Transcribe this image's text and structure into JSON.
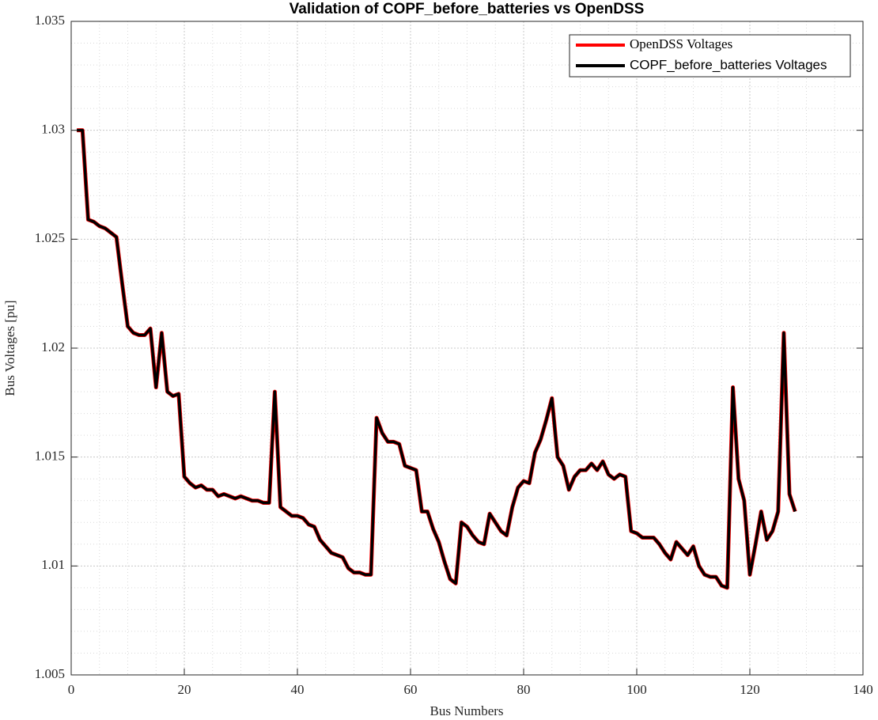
{
  "chart_data": {
    "type": "line",
    "title": "Validation of COPF_before_batteries vs OpenDSS",
    "x_label": "Bus Numbers",
    "y_label": "Bus Voltages [pu]",
    "x": [
      1,
      2,
      3,
      4,
      5,
      6,
      7,
      8,
      9,
      10,
      11,
      12,
      13,
      14,
      15,
      16,
      17,
      18,
      19,
      20,
      21,
      22,
      23,
      24,
      25,
      26,
      27,
      28,
      29,
      30,
      31,
      32,
      33,
      34,
      35,
      36,
      37,
      38,
      39,
      40,
      41,
      42,
      43,
      44,
      45,
      46,
      47,
      48,
      49,
      50,
      51,
      52,
      53,
      54,
      55,
      56,
      57,
      58,
      59,
      60,
      61,
      62,
      63,
      64,
      65,
      66,
      67,
      68,
      69,
      70,
      71,
      72,
      73,
      74,
      75,
      76,
      77,
      78,
      79,
      80,
      81,
      82,
      83,
      84,
      85,
      86,
      87,
      88,
      89,
      90,
      91,
      92,
      93,
      94,
      95,
      96,
      97,
      98,
      99,
      100,
      101,
      102,
      103,
      104,
      105,
      106,
      107,
      108,
      109,
      110,
      111,
      112,
      113,
      114,
      115,
      116,
      117,
      118,
      119,
      120,
      121,
      122,
      123,
      124,
      125,
      126,
      127,
      128
    ],
    "series": [
      {
        "name": "OpenDSS Voltages",
        "color": "#ff0000",
        "values": [
          1.03,
          1.03,
          1.0259,
          1.0258,
          1.0256,
          1.0255,
          1.0253,
          1.0251,
          1.023,
          1.021,
          1.0207,
          1.0206,
          1.0206,
          1.0209,
          1.0182,
          1.0207,
          1.018,
          1.0178,
          1.0179,
          1.0141,
          1.0138,
          1.0136,
          1.0137,
          1.0135,
          1.0135,
          1.0132,
          1.0133,
          1.0132,
          1.0131,
          1.0132,
          1.0131,
          1.013,
          1.013,
          1.0129,
          1.0129,
          1.018,
          1.0127,
          1.0125,
          1.0123,
          1.0123,
          1.0122,
          1.0119,
          1.0118,
          1.0112,
          1.0109,
          1.0106,
          1.0105,
          1.0104,
          1.0099,
          1.0097,
          1.0097,
          1.0096,
          1.0096,
          1.0168,
          1.0161,
          1.0157,
          1.0157,
          1.0156,
          1.0146,
          1.0145,
          1.0144,
          1.0125,
          1.0125,
          1.0117,
          1.0111,
          1.0102,
          1.0094,
          1.0092,
          1.012,
          1.0118,
          1.0114,
          1.0111,
          1.011,
          1.0124,
          1.012,
          1.0116,
          1.0114,
          1.0127,
          1.0136,
          1.0139,
          1.0138,
          1.0152,
          1.0158,
          1.0167,
          1.0177,
          1.015,
          1.0146,
          1.0135,
          1.0141,
          1.0144,
          1.0144,
          1.0147,
          1.0144,
          1.0148,
          1.0142,
          1.014,
          1.0142,
          1.0141,
          1.0116,
          1.0115,
          1.0113,
          1.0113,
          1.0113,
          1.011,
          1.0106,
          1.0103,
          1.0111,
          1.0108,
          1.0105,
          1.0109,
          1.01,
          1.0096,
          1.0095,
          1.0095,
          1.0091,
          1.009,
          1.0182,
          1.014,
          1.013,
          1.0096,
          1.011,
          1.0125,
          1.0112,
          1.0116,
          1.0125,
          1.0207,
          1.0133,
          1.0125
        ]
      },
      {
        "name": "COPF_before_batteries Voltages",
        "color": "#000000",
        "values": [
          1.03,
          1.03,
          1.0259,
          1.0258,
          1.0256,
          1.0255,
          1.0253,
          1.0251,
          1.023,
          1.021,
          1.0207,
          1.0206,
          1.0206,
          1.0209,
          1.0182,
          1.0207,
          1.018,
          1.0178,
          1.0179,
          1.0141,
          1.0138,
          1.0136,
          1.0137,
          1.0135,
          1.0135,
          1.0132,
          1.0133,
          1.0132,
          1.0131,
          1.0132,
          1.0131,
          1.013,
          1.013,
          1.0129,
          1.0129,
          1.018,
          1.0127,
          1.0125,
          1.0123,
          1.0123,
          1.0122,
          1.0119,
          1.0118,
          1.0112,
          1.0109,
          1.0106,
          1.0105,
          1.0104,
          1.0099,
          1.0097,
          1.0097,
          1.0096,
          1.0096,
          1.0168,
          1.0161,
          1.0157,
          1.0157,
          1.0156,
          1.0146,
          1.0145,
          1.0144,
          1.0125,
          1.0125,
          1.0117,
          1.0111,
          1.0102,
          1.0094,
          1.0092,
          1.012,
          1.0118,
          1.0114,
          1.0111,
          1.011,
          1.0124,
          1.012,
          1.0116,
          1.0114,
          1.0127,
          1.0136,
          1.0139,
          1.0138,
          1.0152,
          1.0158,
          1.0167,
          1.0177,
          1.015,
          1.0146,
          1.0135,
          1.0141,
          1.0144,
          1.0144,
          1.0147,
          1.0144,
          1.0148,
          1.0142,
          1.014,
          1.0142,
          1.0141,
          1.0116,
          1.0115,
          1.0113,
          1.0113,
          1.0113,
          1.011,
          1.0106,
          1.0103,
          1.0111,
          1.0108,
          1.0105,
          1.0109,
          1.01,
          1.0096,
          1.0095,
          1.0095,
          1.0091,
          1.009,
          1.0182,
          1.014,
          1.013,
          1.0096,
          1.011,
          1.0125,
          1.0112,
          1.0116,
          1.0125,
          1.0207,
          1.0133,
          1.0125
        ]
      }
    ],
    "xlim": [
      0,
      140
    ],
    "xticks": [
      0,
      20,
      40,
      60,
      80,
      100,
      120,
      140
    ],
    "ylim": [
      1.005,
      1.035
    ],
    "yticks": [
      1.005,
      1.01,
      1.015,
      1.02,
      1.025,
      1.03,
      1.035
    ],
    "grid": true,
    "legend": "northeast"
  }
}
